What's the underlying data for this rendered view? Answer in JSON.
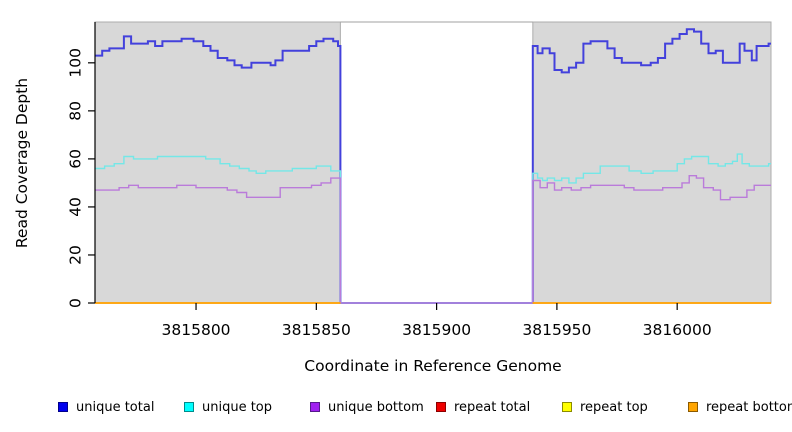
{
  "chart_data": {
    "type": "line",
    "title": "",
    "xlabel": "Coordinate in Reference Genome",
    "ylabel": "Read Coverage Depth",
    "xlim": [
      3815758,
      3816039
    ],
    "ylim": [
      0,
      117
    ],
    "x_ticks": [
      3815800,
      3815850,
      3815900,
      3815950,
      3816000
    ],
    "y_ticks": [
      0,
      20,
      40,
      60,
      80,
      100
    ],
    "grid": false,
    "legend_position": "bottom",
    "shaded_regions": [
      {
        "name": "covered-left",
        "x0": 3815758,
        "x1": 3815860
      },
      {
        "name": "covered-right",
        "x0": 3815940,
        "x1": 3816039
      }
    ],
    "uncovered_gap": {
      "x0": 3815860,
      "x1": 3815940
    },
    "series": [
      {
        "name": "unique total",
        "color": "#4341DC",
        "line_width": 2,
        "segments": [
          [
            [
              3815758,
              103
            ],
            [
              3815761,
              105
            ],
            [
              3815764,
              106
            ],
            [
              3815768,
              106
            ],
            [
              3815770,
              111
            ],
            [
              3815773,
              108
            ],
            [
              3815777,
              108
            ],
            [
              3815780,
              109
            ],
            [
              3815783,
              107
            ],
            [
              3815786,
              109
            ],
            [
              3815790,
              109
            ],
            [
              3815794,
              110
            ],
            [
              3815799,
              109
            ],
            [
              3815803,
              107
            ],
            [
              3815806,
              105
            ],
            [
              3815809,
              102
            ],
            [
              3815813,
              101
            ],
            [
              3815816,
              99
            ],
            [
              3815819,
              98
            ],
            [
              3815823,
              100
            ],
            [
              3815827,
              100
            ],
            [
              3815831,
              99
            ],
            [
              3815833,
              101
            ],
            [
              3815836,
              105
            ],
            [
              3815843,
              105
            ],
            [
              3815847,
              107
            ],
            [
              3815850,
              109
            ],
            [
              3815853,
              110
            ],
            [
              3815857,
              109
            ],
            [
              3815859,
              107
            ],
            [
              3815860,
              0
            ],
            [
              3815940,
              107
            ],
            [
              3815942,
              104
            ],
            [
              3815944,
              106
            ],
            [
              3815947,
              104
            ],
            [
              3815949,
              97
            ],
            [
              3815952,
              96
            ],
            [
              3815955,
              98
            ],
            [
              3815958,
              100
            ],
            [
              3815961,
              108
            ],
            [
              3815964,
              109
            ],
            [
              3815968,
              109
            ],
            [
              3815971,
              106
            ],
            [
              3815974,
              102
            ],
            [
              3815977,
              100
            ],
            [
              3815981,
              100
            ],
            [
              3815985,
              99
            ],
            [
              3815989,
              100
            ],
            [
              3815992,
              102
            ],
            [
              3815995,
              108
            ],
            [
              3815998,
              110
            ],
            [
              3816001,
              112
            ],
            [
              3816004,
              114
            ],
            [
              3816007,
              113
            ],
            [
              3816010,
              108
            ],
            [
              3816013,
              104
            ],
            [
              3816016,
              105
            ],
            [
              3816019,
              100
            ],
            [
              3816023,
              100
            ],
            [
              3816026,
              108
            ],
            [
              3816028,
              105
            ],
            [
              3816031,
              101
            ],
            [
              3816033,
              107
            ],
            [
              3816036,
              107
            ],
            [
              3816038,
              108
            ],
            [
              3816039,
              108
            ]
          ]
        ]
      },
      {
        "name": "unique top",
        "color": "#74E7E7",
        "line_width": 1.4,
        "segments": [
          [
            [
              3815758,
              56
            ],
            [
              3815762,
              57
            ],
            [
              3815766,
              58
            ],
            [
              3815770,
              61
            ],
            [
              3815774,
              60
            ],
            [
              3815780,
              60
            ],
            [
              3815784,
              61
            ],
            [
              3815794,
              61
            ],
            [
              3815804,
              60
            ],
            [
              3815810,
              58
            ],
            [
              3815814,
              57
            ],
            [
              3815818,
              56
            ],
            [
              3815822,
              55
            ],
            [
              3815825,
              54
            ],
            [
              3815829,
              55
            ],
            [
              3815836,
              55
            ],
            [
              3815840,
              56
            ],
            [
              3815846,
              56
            ],
            [
              3815850,
              57
            ],
            [
              3815856,
              55
            ],
            [
              3815860,
              0
            ],
            [
              3815940,
              54
            ],
            [
              3815942,
              52
            ],
            [
              3815944,
              51
            ],
            [
              3815946,
              52
            ],
            [
              3815949,
              51
            ],
            [
              3815952,
              52
            ],
            [
              3815955,
              50
            ],
            [
              3815958,
              52
            ],
            [
              3815961,
              54
            ],
            [
              3815965,
              54
            ],
            [
              3815968,
              57
            ],
            [
              3815974,
              57
            ],
            [
              3815980,
              55
            ],
            [
              3815985,
              54
            ],
            [
              3815990,
              55
            ],
            [
              3815996,
              55
            ],
            [
              3816000,
              58
            ],
            [
              3816003,
              60
            ],
            [
              3816006,
              61
            ],
            [
              3816010,
              61
            ],
            [
              3816013,
              58
            ],
            [
              3816017,
              57
            ],
            [
              3816020,
              58
            ],
            [
              3816023,
              59
            ],
            [
              3816025,
              62
            ],
            [
              3816027,
              58
            ],
            [
              3816030,
              57
            ],
            [
              3816034,
              57
            ],
            [
              3816038,
              58
            ],
            [
              3816039,
              58
            ]
          ]
        ]
      },
      {
        "name": "unique bottom",
        "color": "#BA7BDA",
        "line_width": 1.4,
        "segments": [
          [
            [
              3815758,
              47
            ],
            [
              3815764,
              47
            ],
            [
              3815768,
              48
            ],
            [
              3815772,
              49
            ],
            [
              3815776,
              48
            ],
            [
              3815784,
              48
            ],
            [
              3815792,
              49
            ],
            [
              3815800,
              48
            ],
            [
              3815808,
              48
            ],
            [
              3815813,
              47
            ],
            [
              3815817,
              46
            ],
            [
              3815821,
              44
            ],
            [
              3815826,
              44
            ],
            [
              3815832,
              44
            ],
            [
              3815835,
              48
            ],
            [
              3815842,
              48
            ],
            [
              3815848,
              49
            ],
            [
              3815852,
              50
            ],
            [
              3815856,
              52
            ],
            [
              3815860,
              0
            ],
            [
              3815940,
              51
            ],
            [
              3815943,
              48
            ],
            [
              3815946,
              50
            ],
            [
              3815949,
              47
            ],
            [
              3815952,
              48
            ],
            [
              3815956,
              47
            ],
            [
              3815960,
              48
            ],
            [
              3815964,
              49
            ],
            [
              3815972,
              49
            ],
            [
              3815978,
              48
            ],
            [
              3815982,
              47
            ],
            [
              3815990,
              47
            ],
            [
              3815994,
              48
            ],
            [
              3815998,
              48
            ],
            [
              3816002,
              50
            ],
            [
              3816005,
              53
            ],
            [
              3816008,
              52
            ],
            [
              3816011,
              48
            ],
            [
              3816015,
              47
            ],
            [
              3816018,
              43
            ],
            [
              3816022,
              44
            ],
            [
              3816026,
              44
            ],
            [
              3816029,
              47
            ],
            [
              3816032,
              49
            ],
            [
              3816039,
              49
            ]
          ]
        ]
      },
      {
        "name": "repeat total",
        "color": "#DC1414",
        "line_width": 1.4,
        "segments": [
          [
            [
              3815758,
              0
            ],
            [
              3815860,
              0
            ]
          ],
          [
            [
              3815940,
              0
            ],
            [
              3816039,
              0
            ]
          ]
        ]
      },
      {
        "name": "repeat top",
        "color": "#F5F514",
        "line_width": 1.4,
        "segments": [
          [
            [
              3815758,
              0
            ],
            [
              3815860,
              0
            ]
          ],
          [
            [
              3815940,
              0
            ],
            [
              3816039,
              0
            ]
          ]
        ]
      },
      {
        "name": "repeat bottom",
        "color": "#FFA510",
        "line_width": 1.8,
        "segments": [
          [
            [
              3815758,
              0
            ],
            [
              3815860,
              0
            ]
          ],
          [
            [
              3815940,
              0
            ],
            [
              3816039,
              0
            ]
          ]
        ]
      }
    ],
    "legend": {
      "entries": [
        {
          "label": "unique total",
          "fill": "#0000EE",
          "border": "#00008B"
        },
        {
          "label": "unique top",
          "fill": "#00FFFF",
          "border": "#008B8B"
        },
        {
          "label": "unique bottom",
          "fill": "#A020F0",
          "border": "#551A8B"
        },
        {
          "label": "repeat total",
          "fill": "#EE0000",
          "border": "#8B0000"
        },
        {
          "label": "repeat top",
          "fill": "#FFFF00",
          "border": "#8B8B00"
        },
        {
          "label": "repeat bottom",
          "fill": "#FFA500",
          "border": "#8B5A00"
        }
      ]
    }
  },
  "colors": {
    "plot_background": "#FFFFFF",
    "shaded_region_fill": "#D8D8D8",
    "shaded_region_border": "#ACACAC",
    "plot_top_border": "#A0A0A0",
    "axis": "#000000"
  }
}
